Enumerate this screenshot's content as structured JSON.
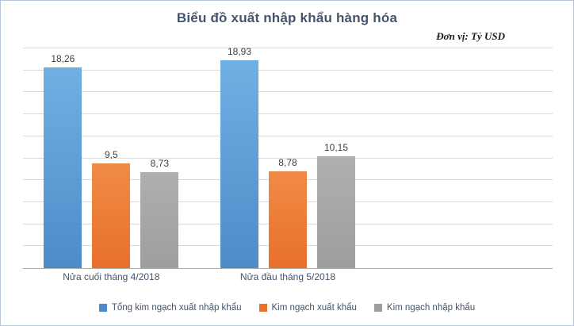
{
  "title": "Biểu đồ xuất nhập khẩu hàng hóa",
  "unit_label": "Đơn vị: Tỷ USD",
  "colors": {
    "title_text": "#44546A",
    "series_blue": "#5B9BD5",
    "series_orange": "#ED7D31",
    "series_gray": "#A5A5A5",
    "gridline": "#d9d9d9"
  },
  "chart_data": {
    "type": "bar",
    "categories": [
      "Nửa cuối tháng 4/2018",
      "Nửa đầu tháng 5/2018"
    ],
    "series": [
      {
        "name": "Tổng kim ngạch xuất nhập khẩu",
        "color": "#4E8BC8",
        "color2": "#6FB0E4",
        "values": [
          18.26,
          18.93
        ],
        "labels": [
          "18,26",
          "18,93"
        ]
      },
      {
        "name": "Kim ngạch xuất khẩu",
        "color": "#E8702A",
        "color2": "#F08B47",
        "values": [
          9.5,
          8.78
        ],
        "labels": [
          "9,5",
          "8,78"
        ]
      },
      {
        "name": "Kim ngạch nhập khẩu",
        "color": "#9E9E9E",
        "color2": "#AFAFAF",
        "values": [
          8.73,
          10.15
        ],
        "labels": [
          "8,73",
          "10,15"
        ]
      }
    ],
    "ylim": [
      0,
      20
    ],
    "gridline_step": 2,
    "grid": true,
    "legend_position": "bottom",
    "slot_count": 3
  }
}
